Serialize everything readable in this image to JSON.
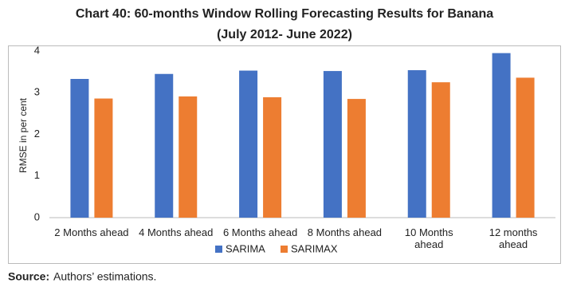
{
  "chart_data": {
    "type": "bar",
    "title": "Chart 40: 60-months Window Rolling Forecasting Results for Banana",
    "subtitle": "(July 2012- June 2022)",
    "y_label": "RMSE in per cent",
    "categories": [
      "2 Months ahead",
      "4 Months ahead",
      "6 Months ahead",
      "8 Months ahead",
      "10 Months\nahead",
      "12 months\nahead"
    ],
    "series": [
      {
        "name": "SARIMA",
        "color": "#4472c4",
        "values": [
          3.33,
          3.45,
          3.53,
          3.52,
          3.54,
          3.95
        ]
      },
      {
        "name": "SARIMAX",
        "color": "#ed7d31",
        "values": [
          2.86,
          2.91,
          2.89,
          2.85,
          3.25,
          3.36
        ]
      }
    ],
    "ylim": [
      0,
      4
    ],
    "yticks": [
      0,
      1,
      2,
      3,
      4
    ],
    "grid": false,
    "legend": "bottom"
  },
  "source": {
    "label": "Source:",
    "text": "Authors’ estimations."
  }
}
